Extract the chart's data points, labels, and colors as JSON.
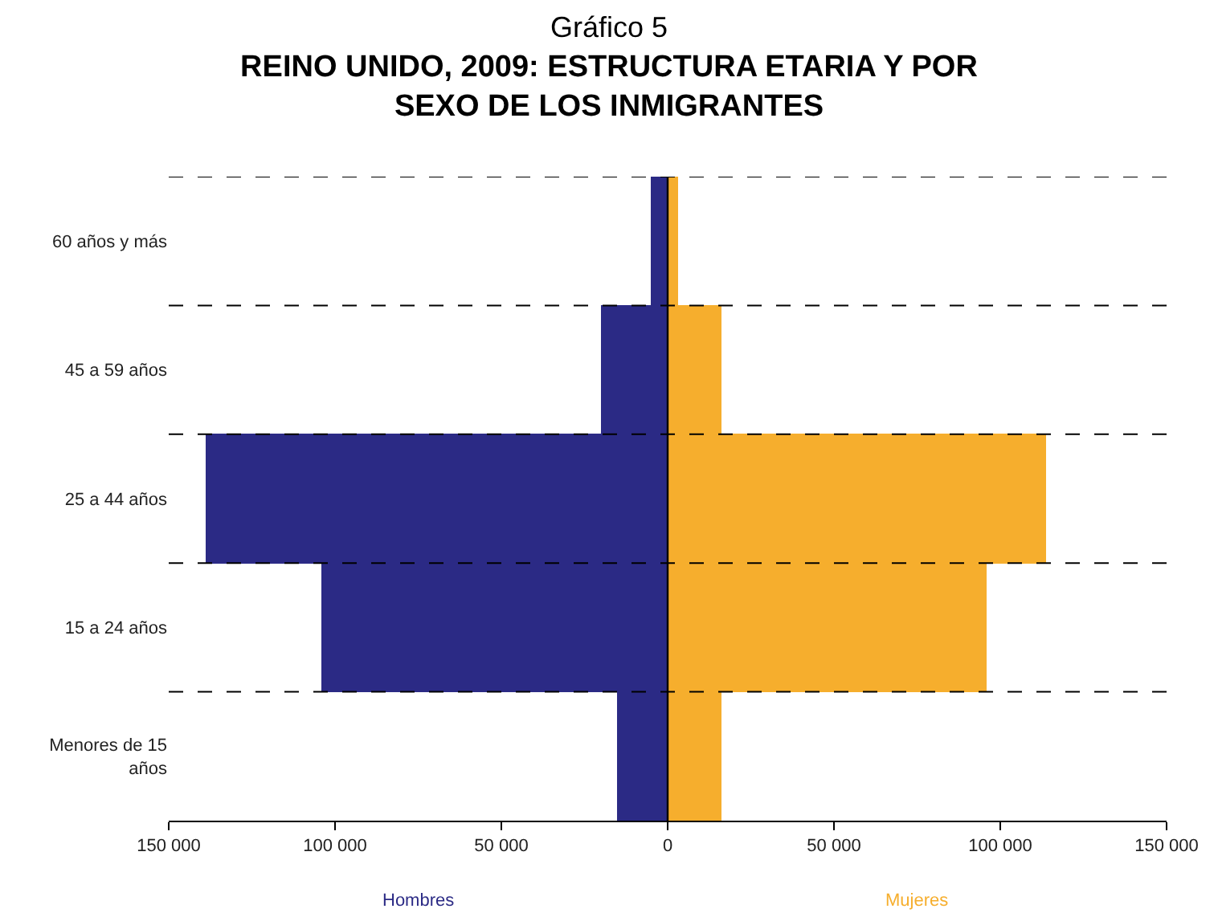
{
  "chart_data": {
    "type": "bar",
    "orientation": "horizontal",
    "title": "Gráfico 5",
    "subtitle": "REINO UNIDO, 2009: ESTRUCTURA ETARIA Y POR SEXO DE LOS INMIGRANTES",
    "categories": [
      "60 años y más",
      "45 a 59 años",
      "25 a 44 años",
      "15 a 24 años",
      "Menores de 15 años"
    ],
    "series": [
      {
        "name": "Hombres",
        "color": "#2b2a85",
        "values": [
          -5000,
          -20000,
          -139000,
          -104000,
          -15000
        ]
      },
      {
        "name": "Mujeres",
        "color": "#f6ae2d",
        "values": [
          3000,
          16000,
          114000,
          96000,
          16000
        ]
      }
    ],
    "xlim": [
      -150000,
      150000
    ],
    "xticks": [
      {
        "value": -150000,
        "label": "150 000"
      },
      {
        "value": -100000,
        "label": "100 000"
      },
      {
        "value": -50000,
        "label": "50 000"
      },
      0,
      {
        "value": 50000,
        "label": "50 000"
      },
      {
        "value": 100000,
        "label": "100 000"
      },
      {
        "value": 150000,
        "label": "150 000"
      }
    ],
    "stacked": true,
    "grid": "y",
    "line_style": "dashed",
    "legend": false
  }
}
